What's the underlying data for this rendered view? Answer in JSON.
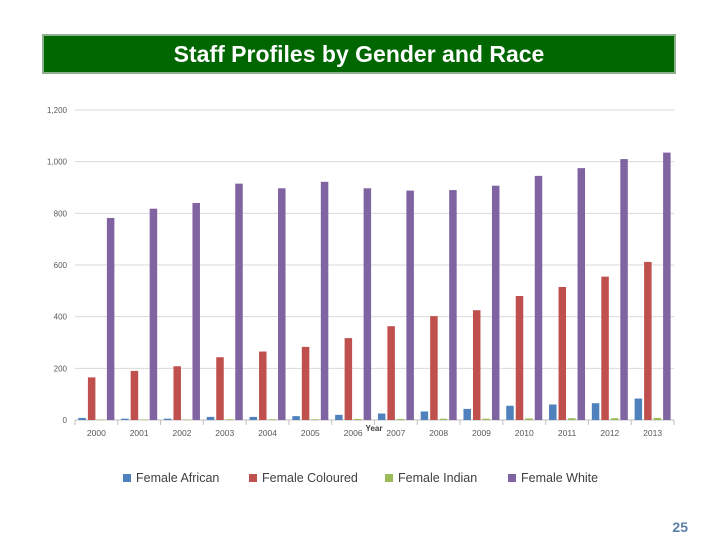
{
  "slide": {
    "title": "Staff Profiles by Gender and Race",
    "page_number": "25"
  },
  "chart_data": {
    "type": "bar",
    "title": "",
    "xlabel": "Year",
    "ylabel": "",
    "ylim": [
      0,
      1200
    ],
    "yticks": [
      0,
      200,
      400,
      600,
      800,
      1000,
      1200
    ],
    "ytick_labels": [
      "0",
      "200",
      "400",
      "600",
      "800",
      "1,000",
      "1,200"
    ],
    "grid": true,
    "legend_position": "bottom",
    "categories": [
      "2000",
      "2001",
      "2002",
      "2003",
      "2004",
      "2005",
      "2006",
      "2007",
      "2008",
      "2009",
      "2010",
      "2011",
      "2012",
      "2013"
    ],
    "series": [
      {
        "name": "Female African",
        "color": "#4f81bd",
        "values": [
          8,
          5,
          5,
          12,
          12,
          15,
          20,
          25,
          33,
          43,
          55,
          60,
          65,
          83
        ]
      },
      {
        "name": "Female Coloured",
        "color": "#c0504d",
        "values": [
          165,
          190,
          208,
          243,
          265,
          283,
          317,
          363,
          402,
          425,
          480,
          515,
          555,
          612
        ]
      },
      {
        "name": "Female Indian",
        "color": "#9bbb59",
        "values": [
          2,
          2,
          2,
          3,
          3,
          3,
          4,
          4,
          5,
          5,
          6,
          7,
          7,
          8
        ]
      },
      {
        "name": "Female White",
        "color": "#8064a2",
        "values": [
          782,
          818,
          840,
          915,
          897,
          922,
          897,
          888,
          890,
          907,
          945,
          975,
          1010,
          1035
        ]
      }
    ]
  }
}
